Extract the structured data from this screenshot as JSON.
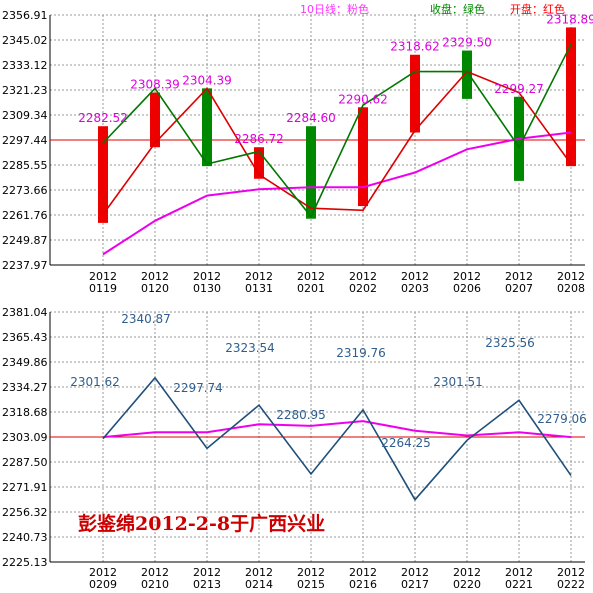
{
  "legend": {
    "pink_line": "10日线：粉色",
    "close_green": "收盘：绿色",
    "open_red": "开盘：红色"
  },
  "watermark": "彭鉴绵2012-2-8于广西兴业",
  "colors": {
    "open_line": "#dd0000",
    "close_line": "#007700",
    "ma10": "#ee00ee",
    "up_bar": "#ee0000",
    "down_bar": "#008800",
    "top_label": "#dd00dd",
    "bottom_line": "#1f4f7a",
    "bottom_label": "#2f5e8e",
    "grid": "#999999",
    "red_ref": "#dd0000",
    "legend_pink": "#ff33ff",
    "legend_green": "#008800",
    "legend_red": "#ff0000",
    "watermark": "#cc0000"
  },
  "chart_data": [
    {
      "type": "bar",
      "subtype": "candlestick-with-lines",
      "categories": [
        [
          "2012",
          "0119"
        ],
        [
          "2012",
          "0120"
        ],
        [
          "2012",
          "0130"
        ],
        [
          "2012",
          "0131"
        ],
        [
          "2012",
          "0201"
        ],
        [
          "2012",
          "0202"
        ],
        [
          "2012",
          "0203"
        ],
        [
          "2012",
          "0206"
        ],
        [
          "2012",
          "0207"
        ],
        [
          "2012",
          "0208"
        ]
      ],
      "yticks": [
        "2356.91",
        "2345.02",
        "2333.12",
        "2321.23",
        "2309.34",
        "2297.44",
        "2285.55",
        "2273.66",
        "2261.76",
        "2249.87",
        "2237.97"
      ],
      "ylim": [
        2237.97,
        2356.91
      ],
      "reference_line": 2297.44,
      "open": [
        2262,
        2296,
        2322,
        2281,
        2265,
        2264,
        2302,
        2330,
        2320,
        2286
      ],
      "close": [
        2296,
        2322,
        2286,
        2292,
        2261,
        2314,
        2330,
        2330,
        2294,
        2343
      ],
      "ma10": [
        2243,
        2259,
        2271,
        2274,
        2275,
        2275,
        2282,
        2293,
        2298,
        2301
      ],
      "bars": [
        {
          "low": 2258,
          "high": 2304,
          "dir": "up"
        },
        {
          "low": 2294,
          "high": 2320,
          "dir": "up"
        },
        {
          "low": 2285,
          "high": 2322,
          "dir": "down"
        },
        {
          "low": 2279,
          "high": 2294,
          "dir": "up"
        },
        {
          "low": 2260,
          "high": 2304,
          "dir": "down"
        },
        {
          "low": 2266,
          "high": 2313,
          "dir": "up"
        },
        {
          "low": 2301,
          "high": 2338,
          "dir": "up"
        },
        {
          "low": 2317,
          "high": 2340,
          "dir": "down"
        },
        {
          "low": 2278,
          "high": 2318,
          "dir": "down"
        },
        {
          "low": 2285,
          "high": 2351,
          "dir": "up"
        }
      ],
      "data_labels": [
        "2282.52",
        "2308.39",
        "2304.39",
        "2286.72",
        "2284.60",
        "2290.62",
        "2318.62",
        "2329.50",
        "2299.27",
        "2318.89"
      ]
    },
    {
      "type": "line",
      "categories": [
        [
          "2012",
          "0209"
        ],
        [
          "2012",
          "0210"
        ],
        [
          "2012",
          "0213"
        ],
        [
          "2012",
          "0214"
        ],
        [
          "2012",
          "0215"
        ],
        [
          "2012",
          "0216"
        ],
        [
          "2012",
          "0217"
        ],
        [
          "2012",
          "0220"
        ],
        [
          "2012",
          "0221"
        ],
        [
          "2012",
          "0222"
        ]
      ],
      "yticks": [
        "2381.04",
        "2365.43",
        "2349.86",
        "2334.27",
        "2318.68",
        "2303.09",
        "2287.50",
        "2271.91",
        "2256.32",
        "2240.73",
        "2225.13"
      ],
      "ylim": [
        2225.13,
        2381.04
      ],
      "reference_line": 2303.09,
      "series": [
        {
          "values": [
            2302,
            2340,
            2296,
            2323,
            2280,
            2320,
            2264,
            2301,
            2326,
            2279
          ]
        },
        {
          "values": [
            2303,
            2306,
            2306,
            2311,
            2310,
            2313,
            2307,
            2304,
            2306,
            2303
          ]
        }
      ],
      "data_labels": [
        "2301.62",
        "2340.87",
        "2297.74",
        "2323.54",
        "2280.95",
        "2319.76",
        "2264.25",
        "2301.51",
        "2325.56",
        "2279.06"
      ]
    }
  ]
}
